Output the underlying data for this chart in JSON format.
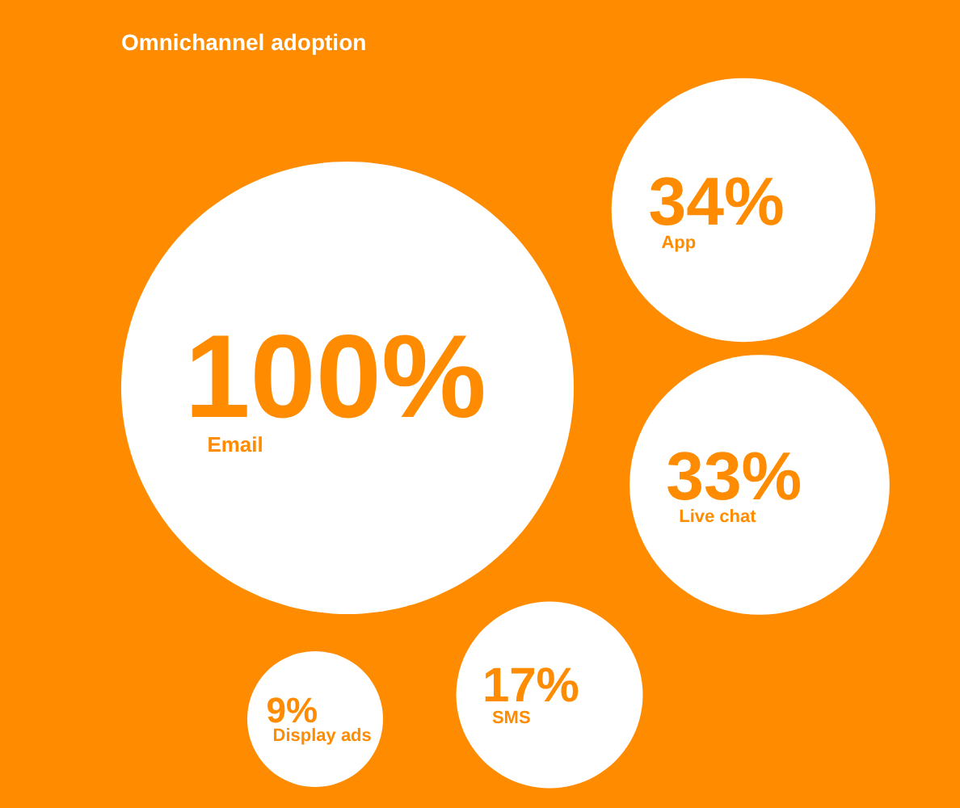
{
  "chart_data": {
    "type": "other",
    "title": "Omnichannel adoption",
    "categories": [
      "Email",
      "App",
      "Live chat",
      "SMS",
      "Display ads"
    ],
    "values": [
      100,
      34,
      33,
      17,
      9
    ],
    "value_labels": [
      "100%",
      "34%",
      "33%",
      "17%",
      "9%"
    ],
    "color": "#ffffff"
  }
}
